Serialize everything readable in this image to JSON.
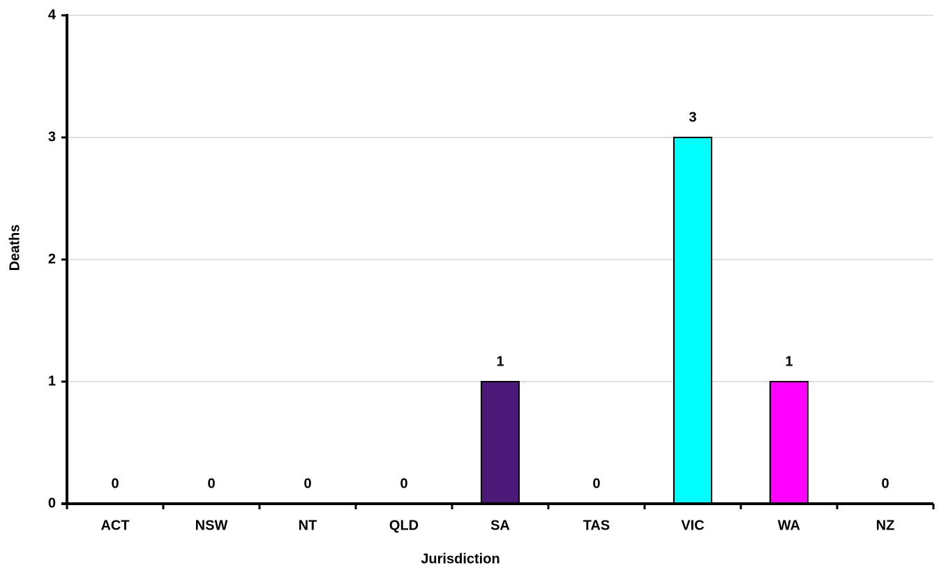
{
  "chart_data": {
    "type": "bar",
    "x_label": "Jurisdiction",
    "y_label": "Deaths",
    "categories": [
      "ACT",
      "NSW",
      "NT",
      "QLD",
      "SA",
      "TAS",
      "VIC",
      "WA",
      "NZ"
    ],
    "values": [
      0,
      0,
      0,
      0,
      1,
      0,
      3,
      1,
      0
    ],
    "colors": [
      null,
      null,
      null,
      null,
      "#4b1a78",
      null,
      "#00ffff",
      "#ff00ff",
      null
    ],
    "ylim": [
      0,
      4
    ],
    "yticks": [
      0,
      1,
      2,
      3,
      4
    ],
    "grid": true
  }
}
